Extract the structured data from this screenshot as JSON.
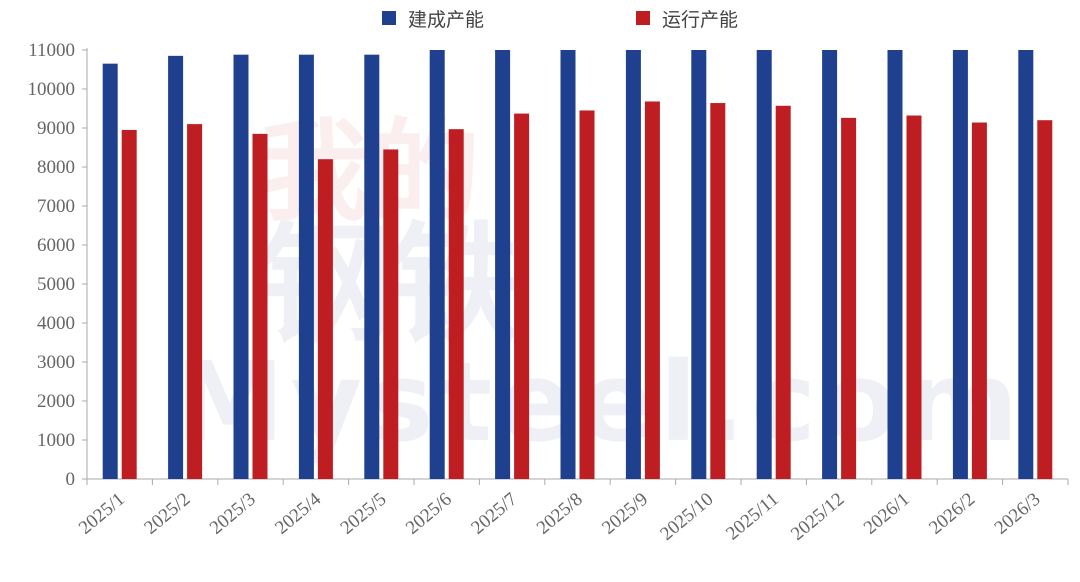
{
  "chart_data": {
    "type": "bar",
    "title": "",
    "xlabel": "",
    "ylabel": "",
    "ylim": [
      0,
      11000
    ],
    "yticks": [
      0,
      1000,
      2000,
      3000,
      4000,
      5000,
      6000,
      7000,
      8000,
      9000,
      10000,
      11000
    ],
    "grid": false,
    "legend_position": "top-center",
    "categories": [
      "2025/1",
      "2025/2",
      "2025/3",
      "2025/4",
      "2025/5",
      "2025/6",
      "2025/7",
      "2025/8",
      "2025/9",
      "2025/10",
      "2025/11",
      "2025/12",
      "2026/1",
      "2026/2",
      "2026/3"
    ],
    "series": [
      {
        "name": "建成产能",
        "color": "#1f3f8f",
        "values": [
          10650,
          10850,
          10880,
          10880,
          10880,
          11000,
          11000,
          11000,
          11000,
          11000,
          11000,
          11000,
          11000,
          11000,
          11000
        ]
      },
      {
        "name": "运行产能",
        "color": "#be1e22",
        "values": [
          8950,
          9100,
          8850,
          8200,
          8450,
          8970,
          9370,
          9450,
          9680,
          9640,
          9570,
          9260,
          9320,
          9140,
          9200
        ]
      }
    ]
  }
}
